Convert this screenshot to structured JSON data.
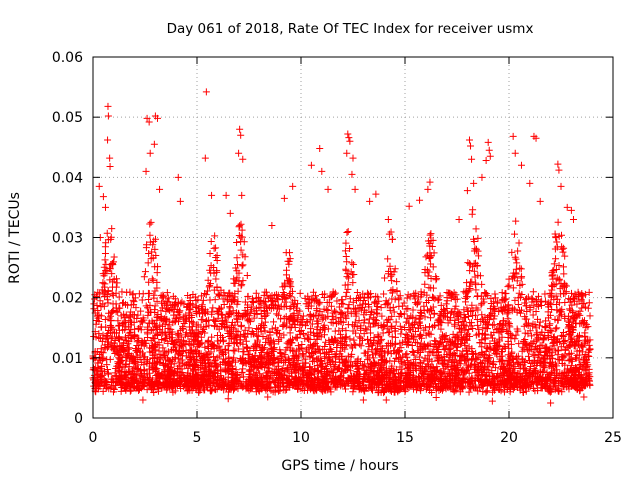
{
  "chart_data": {
    "type": "scatter",
    "title": "Day 061 of 2018, Rate Of TEC Index for receiver usmx",
    "xlabel": "GPS time / hours",
    "ylabel": "ROTI / TECUs",
    "xlim": [
      0,
      25
    ],
    "ylim": [
      0,
      0.06
    ],
    "x_ticks": [
      0,
      5,
      10,
      15,
      20,
      25
    ],
    "x_tick_labels": [
      "0",
      "5",
      "10",
      "15",
      "20",
      "25"
    ],
    "y_ticks": [
      0,
      0.01,
      0.02,
      0.03,
      0.04,
      0.05,
      0.06
    ],
    "y_tick_labels": [
      "0",
      "0.01",
      "0.02",
      "0.03",
      "0.04",
      "0.05",
      "0.06"
    ],
    "grid": true,
    "marker": "plus",
    "color": "#ff0000",
    "data_range_hours": [
      0,
      23.9
    ],
    "series": [
      {
        "name": "ROTI",
        "points": [
          [
            0.72,
            0.0518
          ],
          [
            0.74,
            0.0502
          ],
          [
            0.7,
            0.0462
          ],
          [
            0.8,
            0.0432
          ],
          [
            0.82,
            0.0418
          ],
          [
            0.3,
            0.0385
          ],
          [
            0.35,
            0.03
          ],
          [
            0.5,
            0.0368
          ],
          [
            0.6,
            0.035
          ],
          [
            2.6,
            0.0498
          ],
          [
            2.7,
            0.0492
          ],
          [
            2.75,
            0.044
          ],
          [
            2.55,
            0.041
          ],
          [
            3.0,
            0.0502
          ],
          [
            3.1,
            0.0498
          ],
          [
            2.95,
            0.0455
          ],
          [
            3.2,
            0.038
          ],
          [
            4.1,
            0.04
          ],
          [
            4.2,
            0.036
          ],
          [
            5.45,
            0.0542
          ],
          [
            5.4,
            0.0432
          ],
          [
            5.7,
            0.037
          ],
          [
            6.4,
            0.037
          ],
          [
            6.6,
            0.034
          ],
          [
            7.05,
            0.048
          ],
          [
            7.1,
            0.047
          ],
          [
            7.0,
            0.044
          ],
          [
            7.2,
            0.043
          ],
          [
            7.15,
            0.037
          ],
          [
            8.6,
            0.032
          ],
          [
            9.2,
            0.0365
          ],
          [
            9.6,
            0.0385
          ],
          [
            10.5,
            0.042
          ],
          [
            10.9,
            0.0448
          ],
          [
            11.0,
            0.041
          ],
          [
            11.3,
            0.038
          ],
          [
            12.25,
            0.0472
          ],
          [
            12.3,
            0.0466
          ],
          [
            12.35,
            0.046
          ],
          [
            12.2,
            0.044
          ],
          [
            12.5,
            0.0432
          ],
          [
            12.45,
            0.0405
          ],
          [
            12.6,
            0.038
          ],
          [
            13.3,
            0.036
          ],
          [
            13.6,
            0.0372
          ],
          [
            14.2,
            0.033
          ],
          [
            15.2,
            0.0352
          ],
          [
            15.7,
            0.0362
          ],
          [
            16.2,
            0.0392
          ],
          [
            16.1,
            0.038
          ],
          [
            17.6,
            0.033
          ],
          [
            18.1,
            0.0462
          ],
          [
            18.15,
            0.0452
          ],
          [
            18.2,
            0.043
          ],
          [
            18.3,
            0.039
          ],
          [
            18.0,
            0.0378
          ],
          [
            18.7,
            0.04
          ],
          [
            18.9,
            0.0428
          ],
          [
            19.0,
            0.0458
          ],
          [
            19.05,
            0.0445
          ],
          [
            19.1,
            0.0435
          ],
          [
            20.2,
            0.0468
          ],
          [
            20.3,
            0.044
          ],
          [
            20.6,
            0.042
          ],
          [
            21.2,
            0.0468
          ],
          [
            21.3,
            0.0465
          ],
          [
            21.0,
            0.039
          ],
          [
            21.5,
            0.036
          ],
          [
            22.35,
            0.0422
          ],
          [
            22.4,
            0.0412
          ],
          [
            22.5,
            0.0385
          ],
          [
            22.8,
            0.035
          ],
          [
            23.0,
            0.0345
          ],
          [
            23.1,
            0.033
          ],
          [
            2.4,
            0.003
          ],
          [
            13.0,
            0.003
          ],
          [
            14.1,
            0.003
          ],
          [
            6.5,
            0.0032
          ],
          [
            8.4,
            0.0035
          ],
          [
            16.5,
            0.0034
          ],
          [
            19.2,
            0.0028
          ],
          [
            22.0,
            0.0025
          ],
          [
            23.6,
            0.0035
          ]
        ]
      }
    ]
  }
}
